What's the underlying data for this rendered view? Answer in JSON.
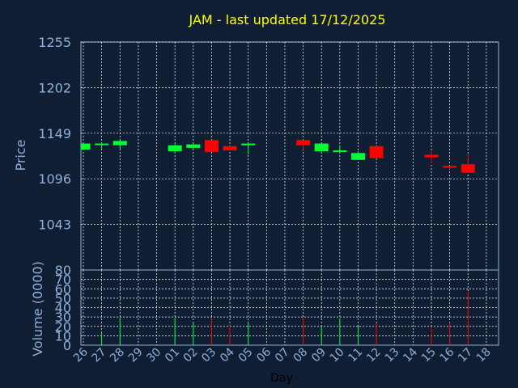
{
  "chart_data": {
    "type": "candlestick",
    "title": "JAM - last updated 17/12/2025",
    "ylabel_price": "Price",
    "ylabel_volume": "Volume (0000)",
    "xlabel": "Day",
    "price_ylim": [
      990,
      1255
    ],
    "price_ticks": [
      "1255",
      "1202",
      "1149",
      "1096",
      "1043"
    ],
    "volume_ylim": [
      0,
      80
    ],
    "volume_ticks": [
      "80",
      "70",
      "60",
      "50",
      "40",
      "30",
      "20",
      "10",
      "0"
    ],
    "days": [
      "26",
      "27",
      "28",
      "29",
      "30",
      "01",
      "02",
      "03",
      "04",
      "05",
      "06",
      "07",
      "08",
      "09",
      "10",
      "11",
      "12",
      "13",
      "14",
      "15",
      "16",
      "17",
      "18"
    ],
    "candles": [
      {
        "day": "26",
        "open": 1130,
        "close": 1137,
        "high": 1137,
        "low": 1130,
        "volume": 0
      },
      {
        "day": "27",
        "open": 1136,
        "close": 1137,
        "high": 1138,
        "low": 1131,
        "volume": 13
      },
      {
        "day": "28",
        "open": 1135,
        "close": 1140,
        "high": 1141,
        "low": 1131,
        "volume": 29
      },
      {
        "day": "01",
        "open": 1128,
        "close": 1135,
        "high": 1136,
        "low": 1126,
        "volume": 29
      },
      {
        "day": "02",
        "open": 1132,
        "close": 1136,
        "high": 1138,
        "low": 1130,
        "volume": 24
      },
      {
        "day": "03",
        "open": 1141,
        "close": 1127,
        "high": 1141,
        "low": 1127,
        "volume": 28
      },
      {
        "day": "04",
        "open": 1134,
        "close": 1129,
        "high": 1134,
        "low": 1129,
        "volume": 21
      },
      {
        "day": "05",
        "open": 1135,
        "close": 1137,
        "high": 1137,
        "low": 1124,
        "volume": 24
      },
      {
        "day": "08",
        "open": 1141,
        "close": 1135,
        "high": 1141,
        "low": 1130,
        "volume": 29
      },
      {
        "day": "09",
        "open": 1128,
        "close": 1137,
        "high": 1137,
        "low": 1126,
        "volume": 20
      },
      {
        "day": "10",
        "open": 1127,
        "close": 1129,
        "high": 1135,
        "low": 1127,
        "volume": 28
      },
      {
        "day": "11",
        "open": 1118,
        "close": 1126,
        "high": 1128,
        "low": 1118,
        "volume": 20
      },
      {
        "day": "12",
        "open": 1134,
        "close": 1120,
        "high": 1134,
        "low": 1120,
        "volume": 23
      },
      {
        "day": "15",
        "open": 1124,
        "close": 1121,
        "high": 1128,
        "low": 1114,
        "volume": 20
      },
      {
        "day": "16",
        "open": 1111,
        "close": 1109,
        "high": 1111,
        "low": 1107,
        "volume": 24
      },
      {
        "day": "17",
        "open": 1113,
        "close": 1103,
        "high": 1125,
        "low": 1103,
        "volume": 57
      }
    ],
    "colors": {
      "background": "#0f1e33",
      "frame": "#8fb0d8",
      "grid": "#ffffff",
      "up": "#00ff33",
      "down": "#ff0000",
      "title": "#ffff00",
      "axis_text": "#8fb0d8",
      "day_label": "#000000"
    },
    "grid": true
  }
}
